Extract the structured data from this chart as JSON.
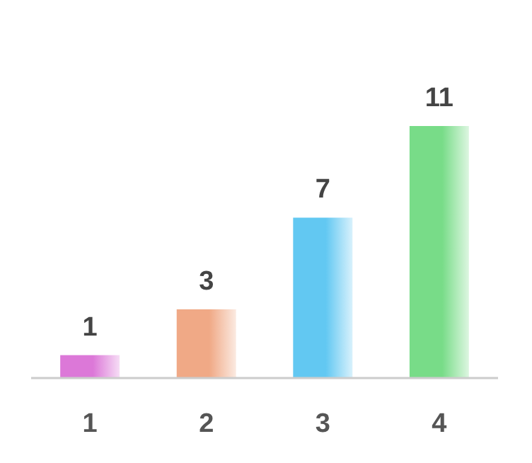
{
  "chart_data": {
    "type": "bar",
    "categories": [
      "1",
      "2",
      "3",
      "4"
    ],
    "values": [
      1,
      3,
      7,
      11
    ],
    "colors": [
      "#dc78d8",
      "#f0a986",
      "#62c8f2",
      "#78dc88"
    ],
    "data_labels": true
  }
}
